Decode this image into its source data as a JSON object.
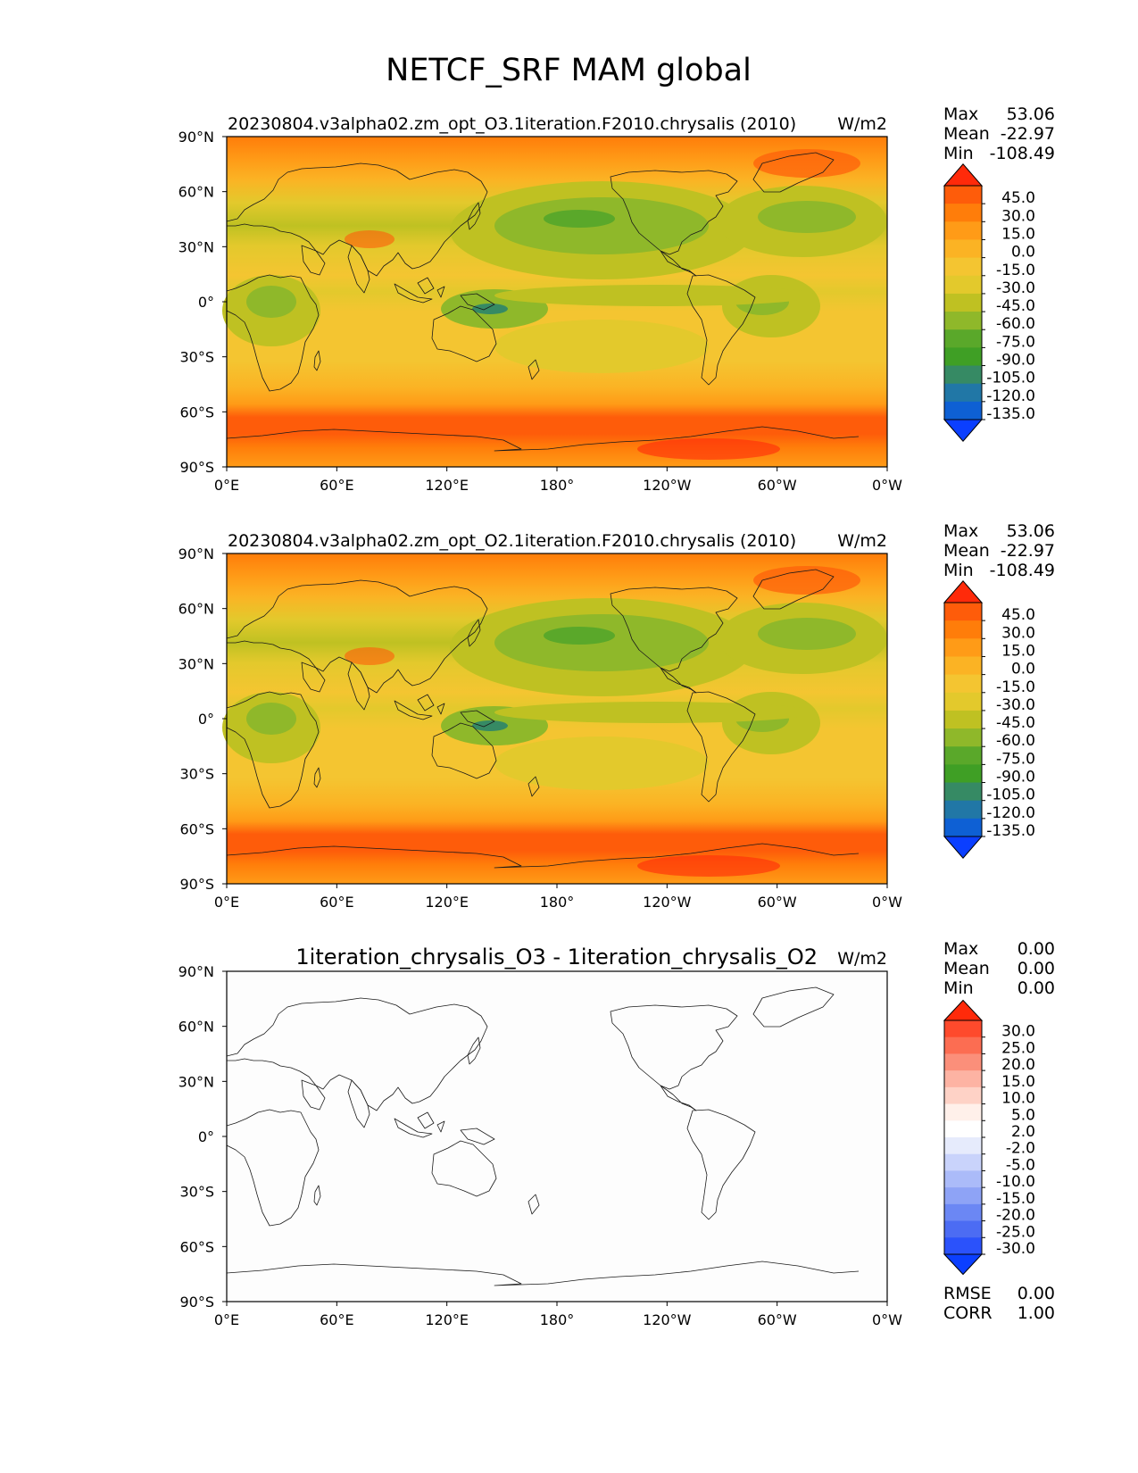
{
  "figure_title": "NETCF_SRF MAM global",
  "lat_ticks": [
    "90°N",
    "60°N",
    "30°N",
    "0°",
    "30°S",
    "60°S",
    "90°S"
  ],
  "lon_ticks": [
    "0°E",
    "60°E",
    "120°E",
    "180°",
    "120°W",
    "60°W",
    "0°W"
  ],
  "panels": [
    {
      "title": "20230804.v3alpha02.zm_opt_O3.1iteration.F2010.chrysalis (2010)",
      "units": "W/m2",
      "stats": [
        {
          "label": "Max",
          "value": "53.06"
        },
        {
          "label": "Mean",
          "value": "-22.97"
        },
        {
          "label": "Min",
          "value": "-108.49"
        }
      ],
      "colorbar": {
        "labels": [
          "45.0",
          "30.0",
          "15.0",
          "0.0",
          "-15.0",
          "-30.0",
          "-45.0",
          "-60.0",
          "-75.0",
          "-90.0",
          "-105.0",
          "-120.0",
          "-135.0"
        ],
        "colors": [
          "#ff2a0a",
          "#fe5c0a",
          "#ff7d0a",
          "#ff9b17",
          "#fbb324",
          "#f4c531",
          "#e3c92c",
          "#bfc122",
          "#8fb82a",
          "#5aa82a",
          "#3f9f25",
          "#368a64",
          "#2177a6",
          "#0e60d4",
          "#0b3fff"
        ]
      }
    },
    {
      "title": "20230804.v3alpha02.zm_opt_O2.1iteration.F2010.chrysalis (2010)",
      "units": "W/m2",
      "stats": [
        {
          "label": "Max",
          "value": "53.06"
        },
        {
          "label": "Mean",
          "value": "-22.97"
        },
        {
          "label": "Min",
          "value": "-108.49"
        }
      ],
      "colorbar": {
        "labels": [
          "45.0",
          "30.0",
          "15.0",
          "0.0",
          "-15.0",
          "-30.0",
          "-45.0",
          "-60.0",
          "-75.0",
          "-90.0",
          "-105.0",
          "-120.0",
          "-135.0"
        ],
        "colors": [
          "#ff2a0a",
          "#fe5c0a",
          "#ff7d0a",
          "#ff9b17",
          "#fbb324",
          "#f4c531",
          "#e3c92c",
          "#bfc122",
          "#8fb82a",
          "#5aa82a",
          "#3f9f25",
          "#368a64",
          "#2177a6",
          "#0e60d4",
          "#0b3fff"
        ]
      }
    },
    {
      "title": "1iteration_chrysalis_O3 - 1iteration_chrysalis_O2",
      "units": "W/m2",
      "stats": [
        {
          "label": "Max",
          "value": "0.00"
        },
        {
          "label": "Mean",
          "value": "0.00"
        },
        {
          "label": "Min",
          "value": "0.00"
        }
      ],
      "colorbar": {
        "labels": [
          "30.0",
          "25.0",
          "20.0",
          "15.0",
          "10.0",
          "5.0",
          "2.0",
          "-2.0",
          "-5.0",
          "-10.0",
          "-15.0",
          "-20.0",
          "-25.0",
          "-30.0"
        ],
        "colors": [
          "#ff2a0a",
          "#fe4a2c",
          "#fc6d52",
          "#fb8f7a",
          "#fdb3a3",
          "#fed2c6",
          "#fff0ea",
          "#ffffff",
          "#e6ebfc",
          "#c9d3fb",
          "#abbbf9",
          "#8ea3f6",
          "#6b87f4",
          "#4c6cf3",
          "#2b52fb",
          "#0b3fff"
        ]
      },
      "extra_stats": [
        {
          "label": "RMSE",
          "value": "0.00"
        },
        {
          "label": "CORR",
          "value": "1.00"
        }
      ]
    }
  ]
}
